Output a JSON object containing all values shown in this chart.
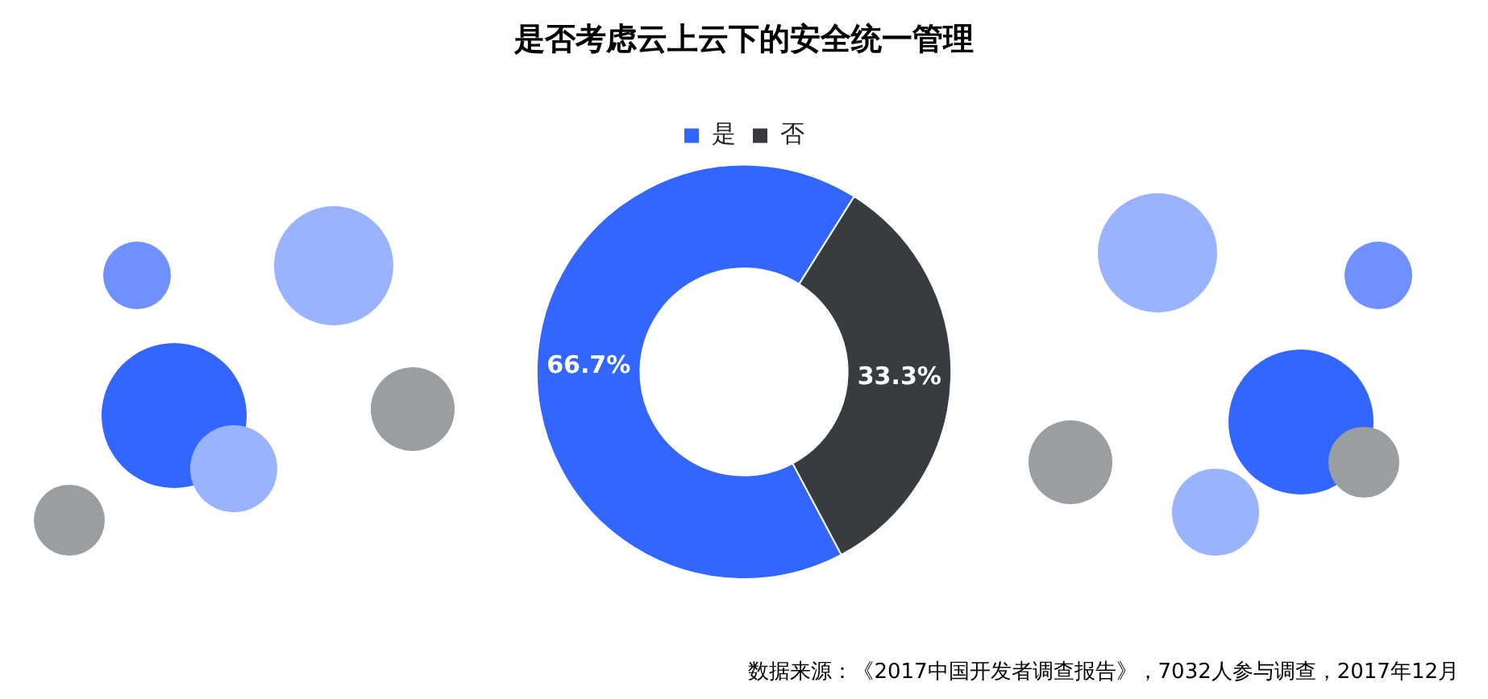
{
  "chart_data": {
    "type": "donut",
    "title": "是否考虑云上云下的安全统一管理",
    "categories": [
      "是",
      "否"
    ],
    "values": [
      66.7,
      33.3
    ],
    "colors": [
      "#3366ff",
      "#383c40"
    ],
    "value_labels": [
      "66.7%",
      "33.3%"
    ],
    "legend": "top",
    "annotations": [
      "数据来源：《2017中国开发者调查报告》，7032人参与调查，2017年12月"
    ]
  }
}
